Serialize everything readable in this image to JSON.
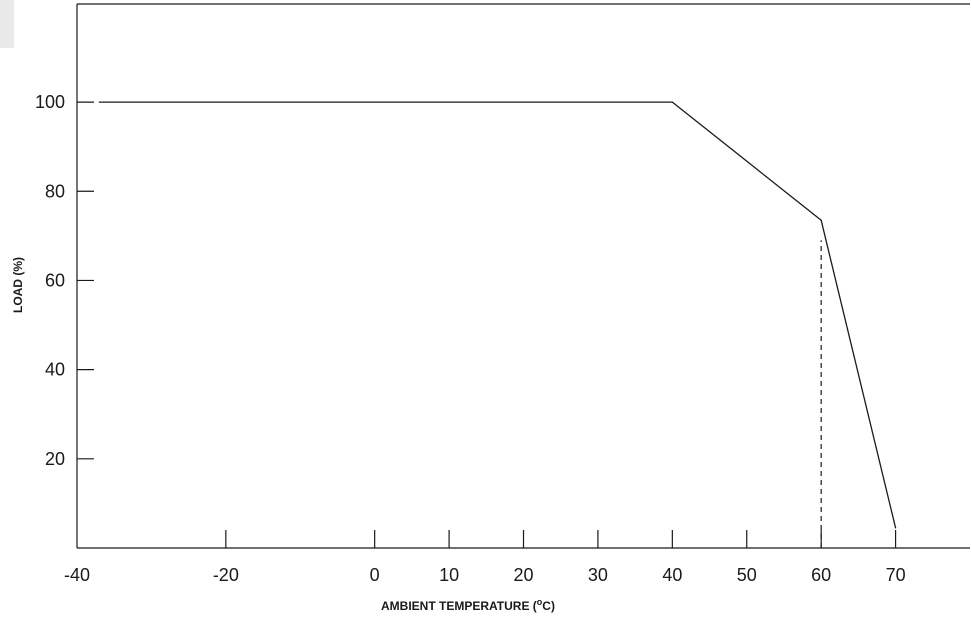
{
  "chart_data": {
    "type": "line",
    "title": "",
    "xlabel": "AMBIENT TEMPERATURE (",
    "xlabel_sup": "o",
    "xlabel_unit": "C)",
    "ylabel": "LOAD (%)",
    "xlim": [
      -40,
      80
    ],
    "ylim": [
      0,
      122
    ],
    "x_ticks": [
      -40,
      -20,
      0,
      10,
      20,
      30,
      40,
      50,
      60,
      70
    ],
    "x_tick_labels": [
      "-40",
      "-20",
      "0",
      "10",
      "20",
      "30",
      "40",
      "50",
      "60",
      "70"
    ],
    "y_ticks": [
      20,
      40,
      60,
      80,
      100
    ],
    "y_tick_labels": [
      "20",
      "40",
      "60",
      "80",
      "100"
    ],
    "grid": false,
    "series": [
      {
        "x": [
          -37,
          40,
          60,
          70
        ],
        "y": [
          100,
          100,
          73.5,
          4.5
        ],
        "color": "#1a1a1a"
      }
    ],
    "reference_lines": [
      {
        "x": 60,
        "y_from": 0,
        "y_to": 69,
        "style": "dashed"
      }
    ]
  }
}
